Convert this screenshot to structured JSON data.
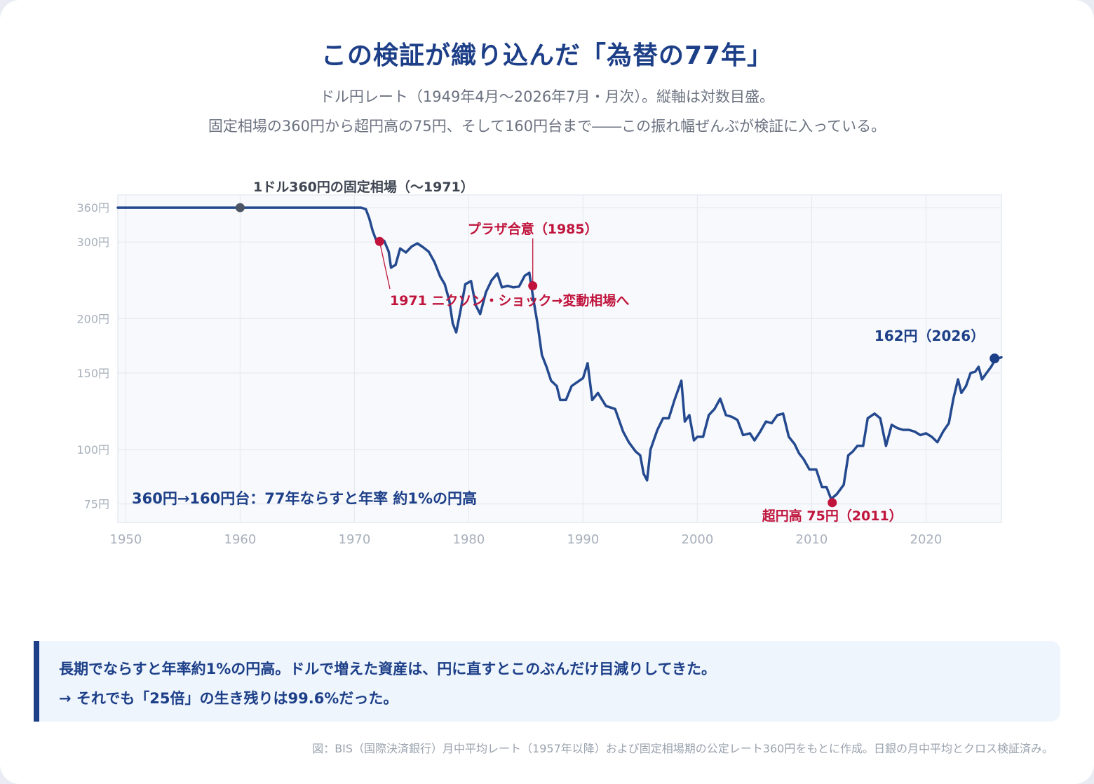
{
  "title": "この検証が織り込んだ「為替の77年」",
  "subtitle_lines": [
    "ドル円レート（1949年4月～2026年7月・月次）。縦軸は対数目盛。",
    "固定相場の360円から超円高の75円、そして160円台まで――この振れ幅ぜんぶが検証に入っている。"
  ],
  "colors": {
    "line": "#24498f",
    "title": "#1d3f88",
    "accent_red": "#c0143c",
    "fixed_marker": "#4b5563",
    "grid": "#e6ebf1",
    "plot_bg": "#f7f9fc",
    "tick": "#a7b0bb"
  },
  "chart_data": {
    "type": "line",
    "log_scale_y": true,
    "grid": true,
    "xlim": [
      1949.3,
      2026.6
    ],
    "ylim": [
      68,
      385
    ],
    "x_ticks": [
      1950,
      1960,
      1970,
      1980,
      1990,
      2000,
      2010,
      2020
    ],
    "x_tick_labels": [
      "1950",
      "1960",
      "1970",
      "1980",
      "1990",
      "2000",
      "2010",
      "2020"
    ],
    "y_ticks": [
      75,
      100,
      150,
      200,
      300,
      360
    ],
    "y_tick_labels": [
      "75円",
      "100円",
      "150円",
      "200円",
      "300円",
      "360円"
    ],
    "series": [
      {
        "x": [
          1949.3,
          1970.6,
          1971.0,
          1971.3,
          1971.6,
          1971.9,
          1972.2,
          1972.6,
          1973.0,
          1973.2,
          1973.6,
          1974.0,
          1974.5,
          1975.0,
          1975.5,
          1976.0,
          1976.5,
          1977.0,
          1977.5,
          1977.9,
          1978.3,
          1978.6,
          1978.9,
          1979.3,
          1979.7,
          1980.2,
          1980.6,
          1981.0,
          1981.5,
          1982.0,
          1982.5,
          1982.9,
          1983.4,
          1983.9,
          1984.4,
          1984.9,
          1985.3,
          1985.5,
          1985.8,
          1986.0,
          1986.4,
          1986.8,
          1987.2,
          1987.7,
          1988.0,
          1988.5,
          1989.0,
          1989.5,
          1990.0,
          1990.4,
          1990.8,
          1991.3,
          1992.0,
          1992.8,
          1993.5,
          1994.0,
          1994.6,
          1995.0,
          1995.3,
          1995.6,
          1995.9,
          1996.5,
          1997.0,
          1997.5,
          1998.0,
          1998.6,
          1998.9,
          1999.3,
          1999.7,
          2000.0,
          2000.5,
          2001.0,
          2001.5,
          2002.0,
          2002.5,
          2003.0,
          2003.5,
          2004.0,
          2004.6,
          2005.0,
          2005.5,
          2006.0,
          2006.5,
          2007.0,
          2007.5,
          2008.0,
          2008.5,
          2008.9,
          2009.3,
          2009.8,
          2010.4,
          2010.9,
          2011.3,
          2011.7,
          2012.2,
          2012.8,
          2013.2,
          2013.6,
          2014.0,
          2014.5,
          2014.9,
          2015.5,
          2016.0,
          2016.5,
          2017.0,
          2017.5,
          2018.0,
          2018.5,
          2019.0,
          2019.5,
          2020.0,
          2020.5,
          2021.0,
          2021.5,
          2022.0,
          2022.4,
          2022.8,
          2023.1,
          2023.5,
          2023.9,
          2024.3,
          2024.6,
          2024.9,
          2025.3,
          2025.7,
          2026.0,
          2026.3,
          2026.6
        ],
        "values": [
          360,
          360,
          357,
          340,
          318,
          303,
          302,
          302,
          285,
          262,
          266,
          290,
          284,
          293,
          298,
          292,
          285,
          270,
          250,
          240,
          220,
          195,
          186,
          210,
          240,
          244,
          215,
          205,
          230,
          245,
          254,
          236,
          238,
          236,
          237,
          251,
          255,
          235,
          210,
          196,
          165,
          155,
          144,
          140,
          130,
          130,
          140,
          143,
          146,
          158,
          130,
          135,
          126,
          124,
          110,
          104,
          99,
          97,
          88,
          85,
          100,
          111,
          118,
          118,
          130,
          144,
          116,
          120,
          105,
          107,
          107,
          120,
          124,
          131,
          120,
          119,
          117,
          108,
          109,
          105,
          110,
          116,
          115,
          120,
          121,
          107,
          103,
          98,
          95,
          90,
          90,
          82,
          82,
          77,
          79,
          83,
          97,
          99,
          102,
          102,
          118,
          121,
          118,
          102,
          114,
          112,
          111,
          111,
          110,
          108,
          109,
          107,
          104,
          110,
          115,
          131,
          145,
          135,
          140,
          150,
          151,
          155,
          145,
          150,
          155,
          160,
          162,
          163
        ]
      }
    ],
    "annotations": {
      "fixed": {
        "text": "1ドル360円の固定相場（～1971）",
        "x": 1960,
        "y": 360
      },
      "nixon": {
        "text": "1971 ニクソン・ショック→変動相場へ",
        "x": 1972.2,
        "y": 301
      },
      "plaza": {
        "text": "プラザ合意（1985）",
        "x": 1985.6,
        "y": 238
      },
      "peak": {
        "text": "超円高 75円（2011）",
        "x": 2011.8,
        "y": 75.5
      },
      "end": {
        "text": "162円（2026）",
        "x": 2026.0,
        "y": 162
      },
      "summary": {
        "text": "360円→160円台：77年ならすと年率 約1%の円高"
      }
    }
  },
  "callout": {
    "line1": "長期でならすと年率約1%の円高。ドルで増えた資産は、円に直すとこのぶんだけ目減りしてきた。",
    "line2": "→ それでも「25倍」の生き残りは99.6%だった。"
  },
  "source": "図：BIS（国際決済銀行）月中平均レート（1957年以降）および固定相場期の公定レート360円をもとに作成。日銀の月中平均とクロス検証済み。"
}
